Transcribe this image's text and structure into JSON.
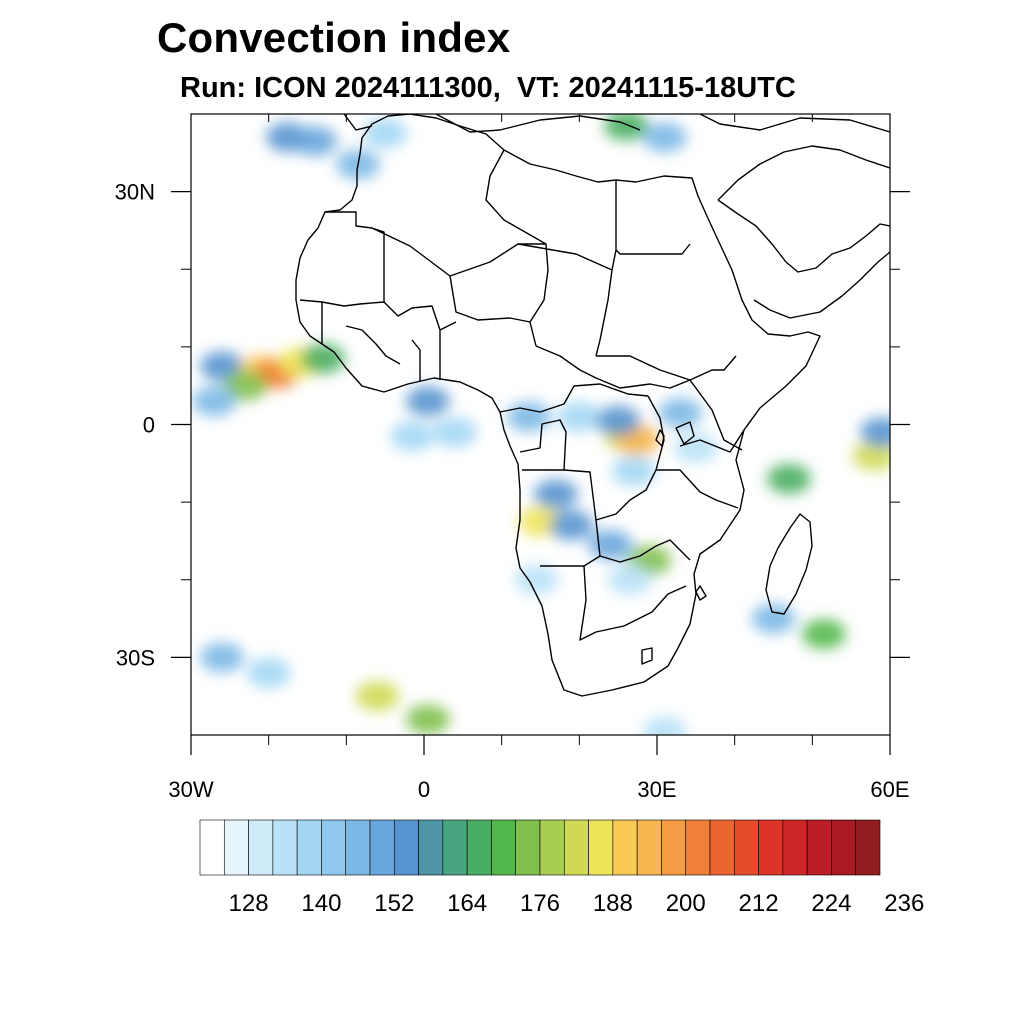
{
  "title": "Convection index",
  "subtitle": "Run: ICON 2024111300,  VT: 20241115-18UTC",
  "map": {
    "lon_range": [
      -30,
      60
    ],
    "lat_range": [
      -40,
      40
    ],
    "lon_labels": [
      {
        "lon": -30,
        "text": "30W"
      },
      {
        "lon": 0,
        "text": "0"
      },
      {
        "lon": 30,
        "text": "30E"
      },
      {
        "lon": 60,
        "text": "60E"
      }
    ],
    "lat_labels": [
      {
        "lat": 30,
        "text": "30N"
      },
      {
        "lat": 0,
        "text": "0"
      },
      {
        "lat": -30,
        "text": "30S"
      }
    ],
    "minor_lon_ticks": [
      -20,
      -10,
      10,
      20,
      40,
      50
    ],
    "minor_lat_ticks": [
      20,
      10,
      -10,
      -20
    ],
    "coastline_color": "#000000",
    "cells": [
      {
        "lon": -17.5,
        "lat": 37.0,
        "value": 150
      },
      {
        "lon": -14.0,
        "lat": 36.5,
        "value": 145
      },
      {
        "lon": -8.5,
        "lat": 33.5,
        "value": 140
      },
      {
        "lon": -5.0,
        "lat": 37.5,
        "value": 135
      },
      {
        "lon": 26.0,
        "lat": 38.5,
        "value": 160
      },
      {
        "lon": 31.0,
        "lat": 37.0,
        "value": 140
      },
      {
        "lon": -26.0,
        "lat": 7.5,
        "value": 150
      },
      {
        "lon": -21.0,
        "lat": 7.0,
        "value": 184
      },
      {
        "lon": -19.0,
        "lat": 6.5,
        "value": 196
      },
      {
        "lon": -23.0,
        "lat": 5.0,
        "value": 170
      },
      {
        "lon": -16.0,
        "lat": 8.0,
        "value": 180
      },
      {
        "lon": -13.0,
        "lat": 8.5,
        "value": 160
      },
      {
        "lon": -27.0,
        "lat": 3.0,
        "value": 140
      },
      {
        "lon": -1.5,
        "lat": -1.5,
        "value": 135
      },
      {
        "lon": 0.5,
        "lat": 3.0,
        "value": 150
      },
      {
        "lon": 4.0,
        "lat": -1.0,
        "value": 132
      },
      {
        "lon": 13.5,
        "lat": 1.0,
        "value": 140
      },
      {
        "lon": 20.0,
        "lat": 1.0,
        "value": 135
      },
      {
        "lon": 26.0,
        "lat": -1.5,
        "value": 176
      },
      {
        "lon": 27.5,
        "lat": -2.0,
        "value": 190
      },
      {
        "lon": 25.0,
        "lat": 0.5,
        "value": 150
      },
      {
        "lon": 33.0,
        "lat": 1.5,
        "value": 140
      },
      {
        "lon": 35.0,
        "lat": -3.0,
        "value": 130
      },
      {
        "lon": 27.0,
        "lat": -6.0,
        "value": 135
      },
      {
        "lon": 17.0,
        "lat": -9.0,
        "value": 150
      },
      {
        "lon": 15.0,
        "lat": -12.5,
        "value": 180
      },
      {
        "lon": 19.0,
        "lat": -13.0,
        "value": 150
      },
      {
        "lon": 24.0,
        "lat": -15.5,
        "value": 145
      },
      {
        "lon": 29.0,
        "lat": -17.5,
        "value": 170
      },
      {
        "lon": 26.5,
        "lat": -20.0,
        "value": 130
      },
      {
        "lon": 14.5,
        "lat": -20.0,
        "value": 128
      },
      {
        "lon": 58.0,
        "lat": -4.0,
        "value": 176
      },
      {
        "lon": 59.0,
        "lat": -1.0,
        "value": 150
      },
      {
        "lon": 47.0,
        "lat": -7.0,
        "value": 160
      },
      {
        "lon": 51.5,
        "lat": -27.0,
        "value": 164
      },
      {
        "lon": 45.0,
        "lat": -25.0,
        "value": 140
      },
      {
        "lon": -26.0,
        "lat": -30.0,
        "value": 140
      },
      {
        "lon": -20.0,
        "lat": -32.0,
        "value": 135
      },
      {
        "lon": -6.0,
        "lat": -35.0,
        "value": 176
      },
      {
        "lon": 0.5,
        "lat": -38.0,
        "value": 168
      },
      {
        "lon": 31.0,
        "lat": -39.5,
        "value": 130
      }
    ]
  },
  "colorbar": {
    "colors": [
      "#ffffff",
      "#e6f4fc",
      "#cfeaf9",
      "#b9e1f7",
      "#a3d7f4",
      "#8fc8ee",
      "#7cb8e6",
      "#69a6dd",
      "#5794cf",
      "#4f96a7",
      "#4aa47f",
      "#49ae61",
      "#53b84b",
      "#7fc04d",
      "#a8cd50",
      "#cfd955",
      "#eee459",
      "#f9cb55",
      "#f8b64f",
      "#f59b44",
      "#f07f39",
      "#ea6530",
      "#e34c2b",
      "#dc3429",
      "#ce2528",
      "#bd1d27",
      "#aa1a23",
      "#921c1f"
    ],
    "labels": [
      "128",
      "140",
      "152",
      "164",
      "176",
      "188",
      "200",
      "212",
      "224",
      "236"
    ],
    "value_min": 116,
    "value_step": 4
  }
}
